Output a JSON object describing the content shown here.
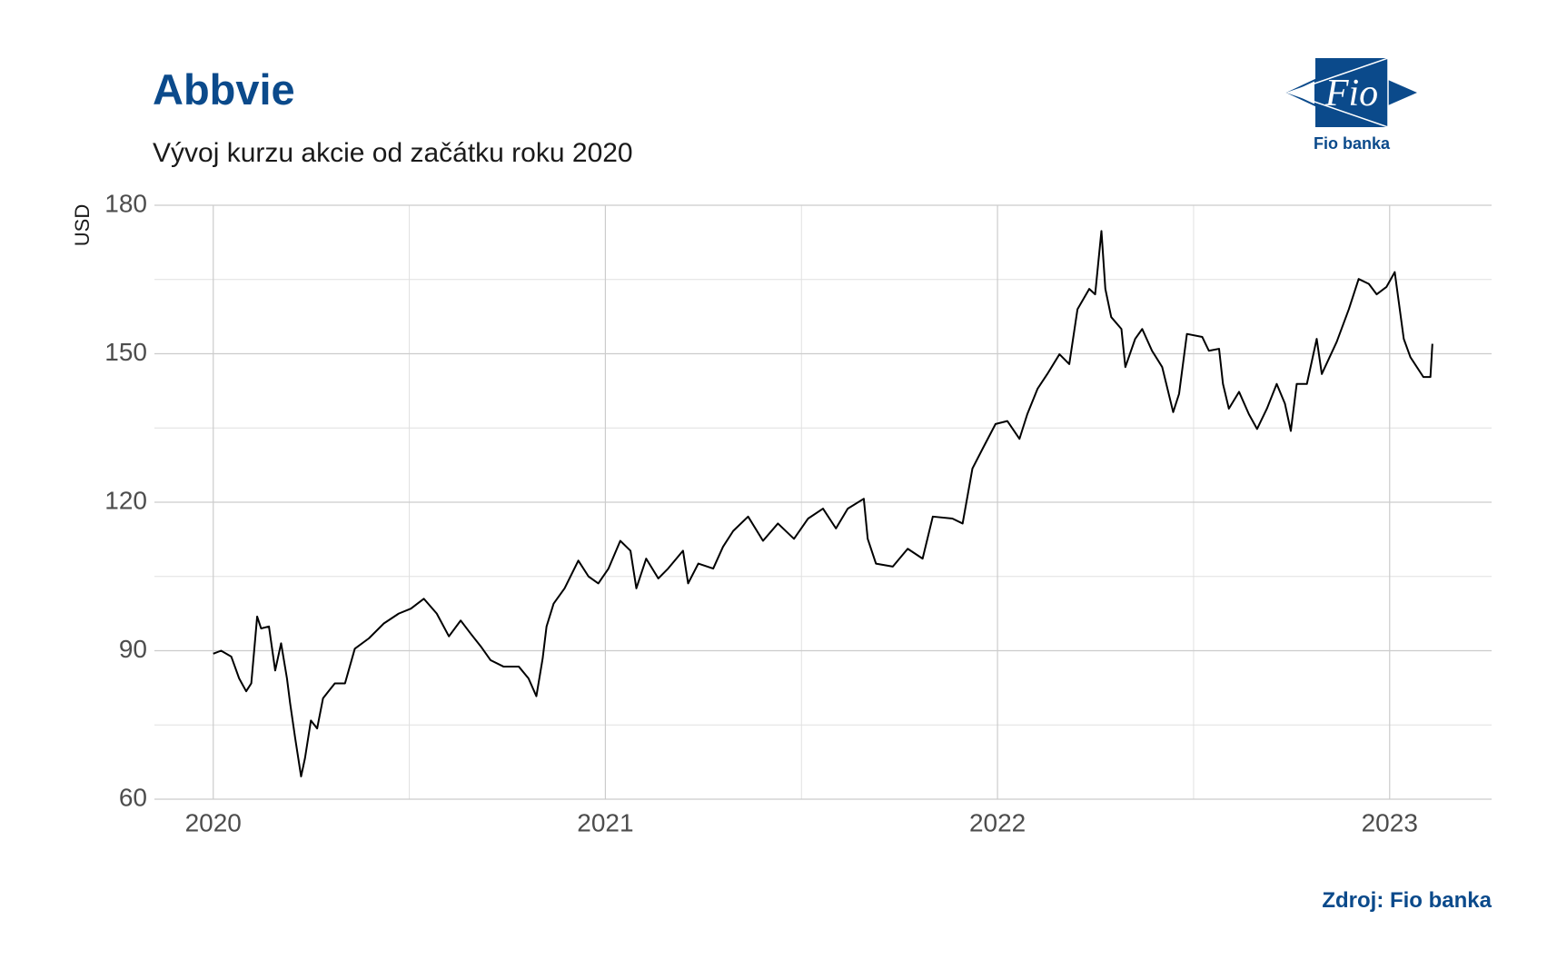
{
  "chart_data": {
    "type": "line",
    "title": "Abbvie",
    "subtitle": "Vývoj kurzu akcie od začátku roku 2020",
    "y_label": "USD",
    "source": "Zdroj: Fio banka",
    "logo": {
      "mark": "Fio",
      "name": "Fio banka"
    },
    "x": [
      2020,
      2020.02,
      2020.046,
      2020.066,
      2020.084,
      2020.097,
      2020.112,
      2020.122,
      2020.142,
      2020.158,
      2020.173,
      2020.188,
      2020.196,
      2020.209,
      2020.224,
      2020.234,
      2020.249,
      2020.265,
      2020.28,
      2020.31,
      2020.336,
      2020.361,
      2020.397,
      2020.435,
      2020.473,
      2020.504,
      2020.537,
      2020.57,
      2020.601,
      2020.631,
      2020.656,
      2020.682,
      2020.707,
      2020.74,
      2020.779,
      2020.804,
      2020.824,
      2020.84,
      2020.85,
      2020.868,
      2020.896,
      2020.931,
      2020.957,
      2020.982,
      2021.008,
      2021.038,
      2021.064,
      2021.079,
      2021.104,
      2021.135,
      2021.16,
      2021.198,
      2021.211,
      2021.237,
      2021.275,
      2021.3,
      2021.326,
      2021.364,
      2021.402,
      2021.44,
      2021.481,
      2021.517,
      2021.555,
      2021.588,
      2021.618,
      2021.659,
      2021.669,
      2021.69,
      2021.733,
      2021.771,
      2021.809,
      2021.835,
      2021.885,
      2021.911,
      2021.936,
      2021.962,
      2021.995,
      2022.025,
      2022.056,
      2022.076,
      2022.102,
      2022.127,
      2022.158,
      2022.183,
      2022.204,
      2022.234,
      2022.249,
      2022.265,
      2022.275,
      2022.29,
      2022.316,
      2022.326,
      2022.351,
      2022.369,
      2022.394,
      2022.42,
      2022.448,
      2022.463,
      2022.483,
      2022.522,
      2022.539,
      2022.565,
      2022.575,
      2022.59,
      2022.616,
      2022.641,
      2022.662,
      2022.687,
      2022.712,
      2022.733,
      2022.748,
      2022.763,
      2022.789,
      2022.814,
      2022.827,
      2022.865,
      2022.896,
      2022.921,
      2022.947,
      2022.967,
      2022.992,
      2023.013,
      2023.036,
      2023.053,
      2023.086,
      2023.104,
      2023.109
    ],
    "series": [
      {
        "name": "Abbvie",
        "color": "#000000",
        "values": [
          89.4,
          90,
          88.8,
          84.4,
          81.8,
          83.4,
          96.9,
          94.5,
          94.9,
          86,
          91.5,
          84.4,
          79.4,
          72.3,
          64.6,
          68.3,
          75.9,
          74.3,
          80.4,
          83.4,
          83.4,
          90.4,
          92.5,
          95.5,
          97.5,
          98.5,
          100.5,
          97.5,
          92.9,
          96.1,
          93.5,
          90.9,
          88.1,
          86.8,
          86.8,
          84.4,
          80.8,
          88.4,
          94.9,
          99.5,
          102.6,
          108.2,
          105,
          103.6,
          106.6,
          112.2,
          110.2,
          102.6,
          108.6,
          104.6,
          106.6,
          110.2,
          103.6,
          107.6,
          106.6,
          111,
          114.2,
          117.1,
          112.2,
          115.7,
          112.6,
          116.7,
          118.7,
          114.7,
          118.7,
          120.7,
          112.6,
          107.6,
          107,
          110.6,
          108.6,
          117.1,
          116.7,
          115.7,
          126.8,
          130.8,
          135.8,
          136.4,
          132.8,
          137.8,
          142.9,
          145.9,
          149.9,
          147.9,
          159,
          163.1,
          162,
          174.8,
          163.1,
          157.4,
          155,
          147.3,
          153,
          155,
          150.6,
          147.3,
          138.2,
          141.9,
          154,
          153.4,
          150.6,
          151,
          143.9,
          138.9,
          142.3,
          137.8,
          134.8,
          138.9,
          143.9,
          139.9,
          134.4,
          143.9,
          143.9,
          153,
          145.9,
          152.4,
          159,
          165.1,
          164.1,
          162,
          163.5,
          166.5,
          153,
          149.3,
          145.3,
          145.3,
          152
        ]
      }
    ],
    "xlim": [
      2019.85,
      2023.26
    ],
    "xticks": [
      2020,
      2021,
      2022,
      2023
    ],
    "xticks_minor": [
      2020.5,
      2021.5,
      2022.5
    ],
    "ylim": [
      60,
      180
    ],
    "yticks": [
      60,
      90,
      120,
      150,
      180
    ],
    "yticks_minor": [
      75,
      105,
      135,
      165
    ],
    "grid": true
  }
}
